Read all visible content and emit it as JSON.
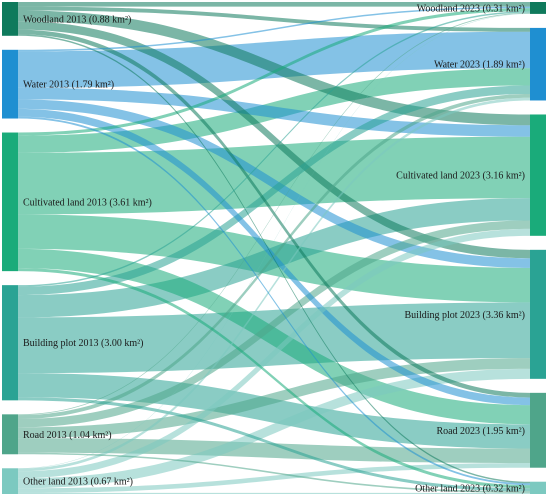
{
  "chart_data": {
    "type": "sankey",
    "title": "",
    "unit": "km²",
    "colors": {
      "Woodland": "#0f7a5c",
      "Water": "#1f8fd1",
      "Cultivated land": "#1aab7a",
      "Building plot": "#2aa394",
      "Road": "#4fa58a",
      "Other land": "#7cc9c0"
    },
    "source_nodes": [
      {
        "name": "Woodland",
        "label": "Woodland 2013 (0.88 km²)",
        "value": 0.88
      },
      {
        "name": "Water",
        "label": "Water 2013 (1.79 km²)",
        "value": 1.79
      },
      {
        "name": "Cultivated land",
        "label": "Cultivated land 2013 (3.61 km²)",
        "value": 3.61
      },
      {
        "name": "Building plot",
        "label": "Building plot 2013 (3.00 km²)",
        "value": 3.0
      },
      {
        "name": "Road",
        "label": "Road 2013 (1.04 km²)",
        "value": 1.04
      },
      {
        "name": "Other land",
        "label": "Other land 2013 (0.67 km²)",
        "value": 0.67
      }
    ],
    "target_nodes": [
      {
        "name": "Woodland",
        "label": "Woodland 2023 (0.31 km²)",
        "value": 0.31
      },
      {
        "name": "Water",
        "label": "Water 2023 (1.89 km²)",
        "value": 1.89
      },
      {
        "name": "Cultivated land",
        "label": "Cultivated land 2023 (3.16 km²)",
        "value": 3.16
      },
      {
        "name": "Building plot",
        "label": "Building plot 2023 (3.36 km²)",
        "value": 3.36
      },
      {
        "name": "Road",
        "label": "Road 2023 (1.95 km²)",
        "value": 1.95
      },
      {
        "name": "Other land",
        "label": "Other land 2023 (0.32 km²)",
        "value": 0.32
      }
    ],
    "links": [
      {
        "source": "Woodland",
        "target": "Woodland",
        "value": 0.12
      },
      {
        "source": "Woodland",
        "target": "Water",
        "value": 0.1
      },
      {
        "source": "Woodland",
        "target": "Cultivated land",
        "value": 0.28
      },
      {
        "source": "Woodland",
        "target": "Building plot",
        "value": 0.22
      },
      {
        "source": "Woodland",
        "target": "Road",
        "value": 0.12
      },
      {
        "source": "Woodland",
        "target": "Other land",
        "value": 0.04
      },
      {
        "source": "Water",
        "target": "Woodland",
        "value": 0.04
      },
      {
        "source": "Water",
        "target": "Water",
        "value": 0.95
      },
      {
        "source": "Water",
        "target": "Cultivated land",
        "value": 0.3
      },
      {
        "source": "Water",
        "target": "Building plot",
        "value": 0.25
      },
      {
        "source": "Water",
        "target": "Road",
        "value": 0.2
      },
      {
        "source": "Water",
        "target": "Other land",
        "value": 0.05
      },
      {
        "source": "Cultivated land",
        "target": "Woodland",
        "value": 0.08
      },
      {
        "source": "Cultivated land",
        "target": "Water",
        "value": 0.45
      },
      {
        "source": "Cultivated land",
        "target": "Cultivated land",
        "value": 1.6
      },
      {
        "source": "Cultivated land",
        "target": "Building plot",
        "value": 0.9
      },
      {
        "source": "Cultivated land",
        "target": "Road",
        "value": 0.5
      },
      {
        "source": "Cultivated land",
        "target": "Other land",
        "value": 0.08
      },
      {
        "source": "Building plot",
        "target": "Woodland",
        "value": 0.04
      },
      {
        "source": "Building plot",
        "target": "Water",
        "value": 0.22
      },
      {
        "source": "Building plot",
        "target": "Cultivated land",
        "value": 0.58
      },
      {
        "source": "Building plot",
        "target": "Building plot",
        "value": 1.45
      },
      {
        "source": "Building plot",
        "target": "Road",
        "value": 0.63
      },
      {
        "source": "Building plot",
        "target": "Other land",
        "value": 0.08
      },
      {
        "source": "Road",
        "target": "Woodland",
        "value": 0.02
      },
      {
        "source": "Road",
        "target": "Water",
        "value": 0.1
      },
      {
        "source": "Road",
        "target": "Cultivated land",
        "value": 0.22
      },
      {
        "source": "Road",
        "target": "Building plot",
        "value": 0.28
      },
      {
        "source": "Road",
        "target": "Road",
        "value": 0.38
      },
      {
        "source": "Road",
        "target": "Other land",
        "value": 0.04
      },
      {
        "source": "Other land",
        "target": "Woodland",
        "value": 0.01
      },
      {
        "source": "Other land",
        "target": "Water",
        "value": 0.07
      },
      {
        "source": "Other land",
        "target": "Cultivated land",
        "value": 0.18
      },
      {
        "source": "Other land",
        "target": "Building plot",
        "value": 0.26
      },
      {
        "source": "Other land",
        "target": "Road",
        "value": 0.12
      },
      {
        "source": "Other land",
        "target": "Other land",
        "value": 0.03
      }
    ]
  }
}
